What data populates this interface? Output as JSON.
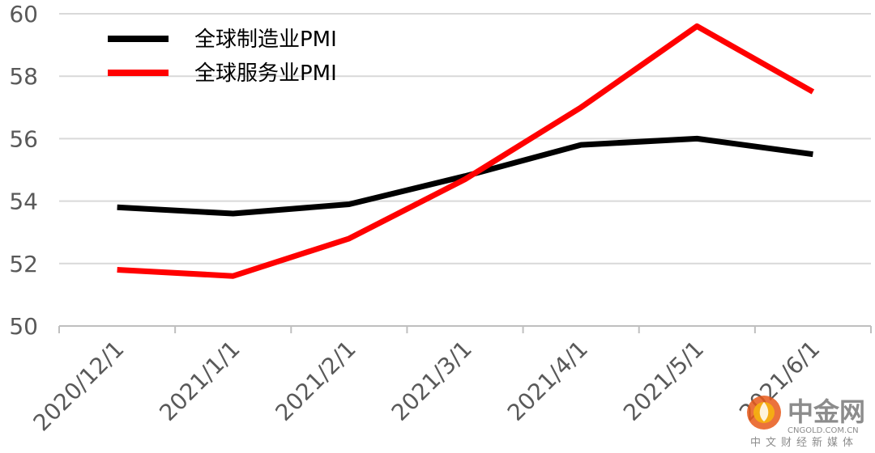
{
  "chart_data": {
    "type": "line",
    "categories": [
      "2020/12/1",
      "2021/1/1",
      "2021/2/1",
      "2021/3/1",
      "2021/4/1",
      "2021/5/1",
      "2021/6/1"
    ],
    "series": [
      {
        "name": "全球制造业PMI",
        "color": "#000000",
        "values": [
          53.8,
          53.6,
          53.9,
          54.8,
          55.8,
          56.0,
          55.5
        ]
      },
      {
        "name": "全球服务业PMI",
        "color": "#ff0000",
        "values": [
          51.8,
          51.6,
          52.8,
          54.7,
          57.0,
          59.6,
          57.5
        ]
      }
    ],
    "yticks": [
      "50",
      "52",
      "54",
      "56",
      "58",
      "60"
    ],
    "ylim": [
      50,
      60
    ],
    "grid": true,
    "legend_position": "top-left"
  },
  "watermark": {
    "title": "中金网",
    "domain": "CNGOLD.COM.CN",
    "tagline": "中文财经新媒体",
    "logo_icon": "flame-circle-icon"
  }
}
